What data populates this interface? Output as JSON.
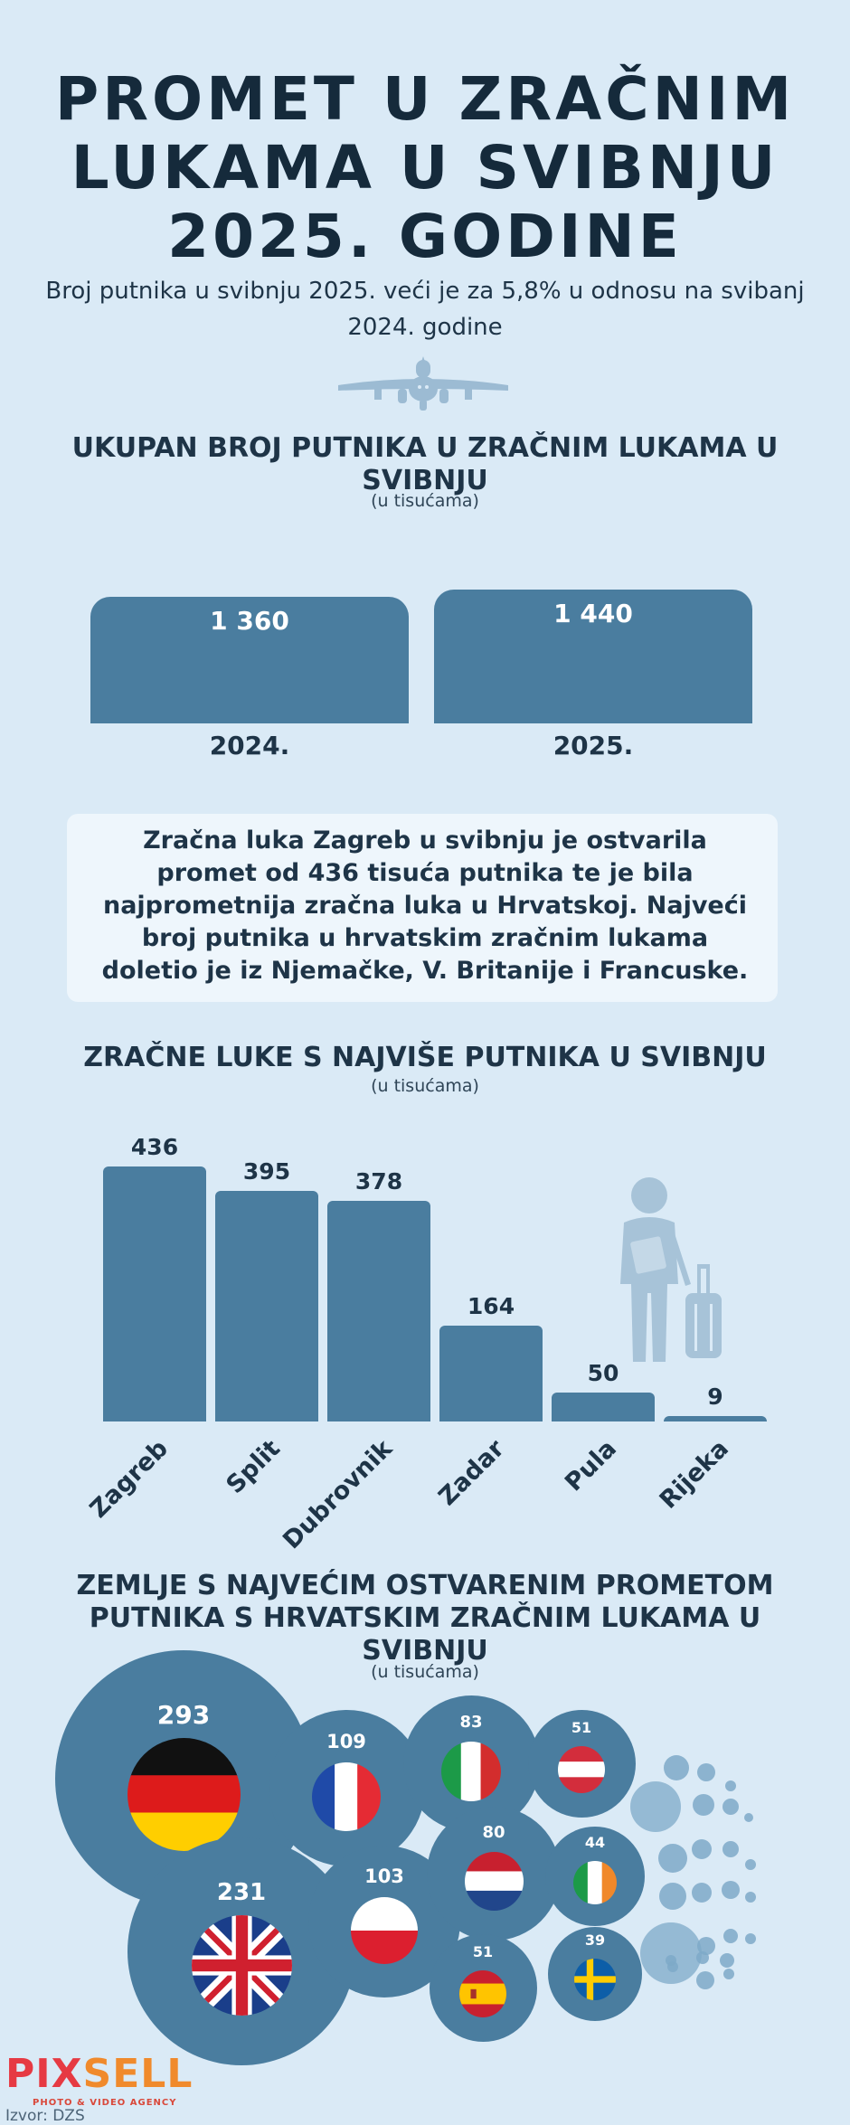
{
  "header": {
    "title_lines": [
      "PROMET U ZRAČNIM",
      "LUKAMA U SVIBNJU",
      "2025. GODINE"
    ],
    "subtitle": "Broj putnika u svibnju 2025. veći je za 5,8% u odnosu na svibanj 2024. godine"
  },
  "icons": {
    "plane": "airplane-icon",
    "traveler": "traveler-with-suitcase-icon"
  },
  "section1": {
    "title": "UKUPAN BROJ PUTNIKA U ZRAČNIM LUKAMA U SVIBNJU",
    "unit": "(u tisućama)"
  },
  "info": {
    "text": "Zračna luka Zagreb u svibnju je ostvarila promet od 436 tisuća putnika te je bila najprometnija zračna luka u Hrvatskoj. Najveći broj putnika u hrvatskim zračnim lukama doletio je iz Njemačke, V. Britanije i Francuske."
  },
  "section2": {
    "title": "ZRAČNE LUKE S NAJVIŠE PUTNIKA U SVIBNJU",
    "unit": "(u tisućama)"
  },
  "section3": {
    "title": "ZEMLJE S NAJVEĆIM OSTVARENIM PROMETOM PUTNIKA S HRVATSKIM ZRAČNIM LUKAMA U SVIBNJU",
    "unit": "(u tisućama)"
  },
  "chart_data": [
    {
      "type": "bar",
      "title": "UKUPAN BROJ PUTNIKA U ZRAČNIM LUKAMA U SVIBNJU",
      "subtitle": "(u tisućama)",
      "categories": [
        "2024.",
        "2025."
      ],
      "values": [
        1360,
        1440
      ],
      "value_labels": [
        "1 360",
        "1 440"
      ]
    },
    {
      "type": "bar",
      "title": "ZRAČNE LUKE S NAJVIŠE PUTNIKA U SVIBNJU",
      "subtitle": "(u tisućama)",
      "categories": [
        "Zagreb",
        "Split",
        "Dubrovnik",
        "Zadar",
        "Pula",
        "Rijeka"
      ],
      "values": [
        436,
        395,
        378,
        164,
        50,
        9
      ],
      "ylim": [
        0,
        436
      ]
    },
    {
      "type": "bubble",
      "title": "ZEMLJE S NAJVEĆIM OSTVARENIM PROMETOM PUTNIKA S HRVATSKIM ZRAČNIM LUKAMA U SVIBNJU",
      "subtitle": "(u tisućama)",
      "items": [
        {
          "flag": "germany-flag-icon",
          "value": 293
        },
        {
          "flag": "uk-flag-icon",
          "value": 231
        },
        {
          "flag": "france-flag-icon",
          "value": 109
        },
        {
          "flag": "poland-flag-icon",
          "value": 103
        },
        {
          "flag": "italy-flag-icon",
          "value": 83
        },
        {
          "flag": "netherlands-flag-icon",
          "value": 80
        },
        {
          "flag": "austria-flag-icon",
          "value": 51
        },
        {
          "flag": "spain-flag-icon",
          "value": 51
        },
        {
          "flag": "ireland-flag-icon",
          "value": 44
        },
        {
          "flag": "sweden-flag-icon",
          "value": 39
        }
      ]
    }
  ],
  "footer": {
    "logo_pix": "PIX",
    "logo_sell": "SELL",
    "logo_sub": "PHOTO & VIDEO AGENCY",
    "source": "Izvor: DZS"
  },
  "colors": {
    "background": "#daeaf6",
    "bar": "#4a7d9f",
    "text": "#1e3447",
    "decor": "#9cbbd3"
  }
}
